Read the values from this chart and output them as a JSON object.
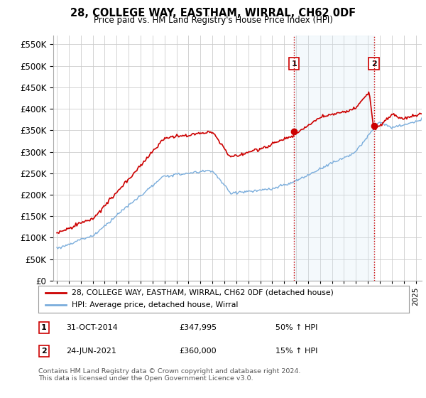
{
  "title": "28, COLLEGE WAY, EASTHAM, WIRRAL, CH62 0DF",
  "subtitle": "Price paid vs. HM Land Registry's House Price Index (HPI)",
  "yticks": [
    0,
    50000,
    100000,
    150000,
    200000,
    250000,
    300000,
    350000,
    400000,
    450000,
    500000,
    550000
  ],
  "ylim": [
    0,
    570000
  ],
  "hpi_color": "#7aaddc",
  "price_color": "#cc0000",
  "vline_color": "#cc0000",
  "shade_color": "#d6e8f5",
  "grid_color": "#cccccc",
  "bg_color": "#ffffff",
  "purchase1_price": 347995,
  "purchase1_label": "31-OCT-2014",
  "purchase1_pct": "50% ↑ HPI",
  "purchase2_price": 360000,
  "purchase2_label": "24-JUN-2021",
  "purchase2_pct": "15% ↑ HPI",
  "legend_line1": "28, COLLEGE WAY, EASTHAM, WIRRAL, CH62 0DF (detached house)",
  "legend_line2": "HPI: Average price, detached house, Wirral",
  "footnote": "Contains HM Land Registry data © Crown copyright and database right 2024.\nThis data is licensed under the Open Government Licence v3.0.",
  "xstart": 1994.7,
  "xend": 2025.5
}
